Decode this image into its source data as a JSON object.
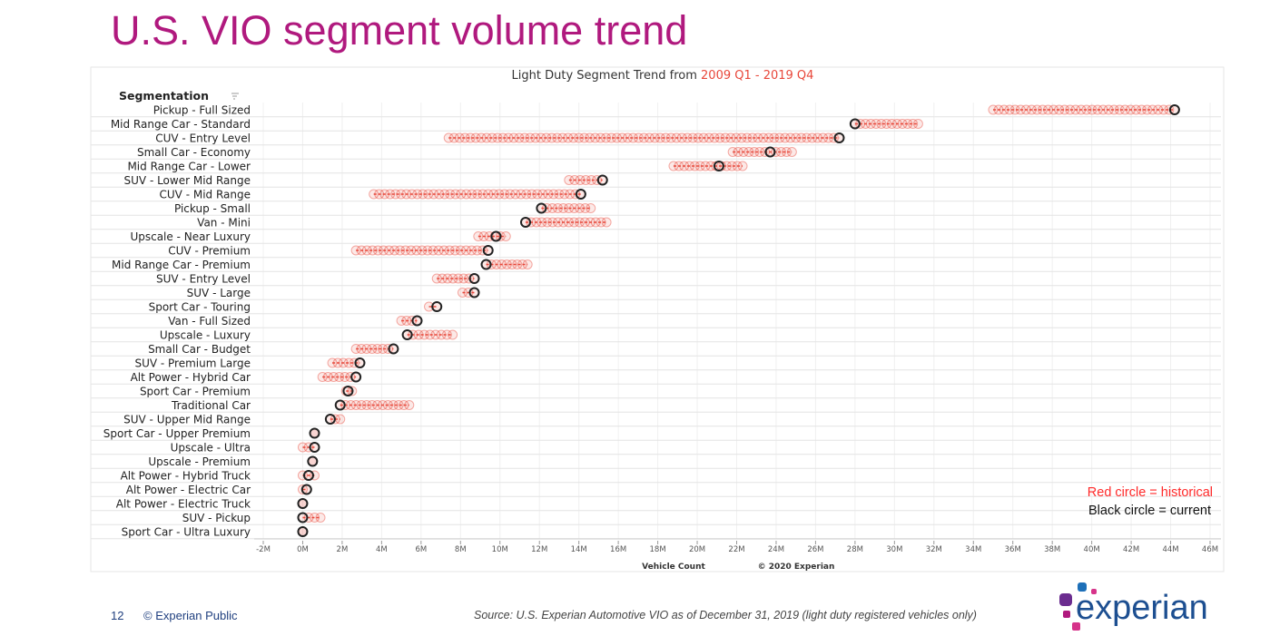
{
  "slide": {
    "title": "U.S. VIO segment volume trend",
    "page_number": "12",
    "classification": "© Experian Public",
    "source": "Source: U.S. Experian Automotive VIO as of December 31, 2019  (light duty registered vehicles only)",
    "logo_text": "experian"
  },
  "chart_data": {
    "type": "dot-range",
    "title_prefix": "Light Duty Segment Trend from ",
    "title_highlight": "2009 Q1 - 2019 Q4",
    "row_header": "Segmentation",
    "xlabel": "Vehicle Count",
    "credit": "© 2020 Experian",
    "xlim": [
      -2,
      46
    ],
    "x_unit": "M",
    "x_ticks": [
      "-2M",
      "0M",
      "2M",
      "4M",
      "6M",
      "8M",
      "10M",
      "12M",
      "14M",
      "16M",
      "18M",
      "20M",
      "22M",
      "24M",
      "26M",
      "28M",
      "30M",
      "32M",
      "34M",
      "36M",
      "38M",
      "40M",
      "42M",
      "44M",
      "46M"
    ],
    "grid": true,
    "legend": {
      "placement": "bottom-right",
      "historical": "Red circle = historical",
      "current": "Black circle = current"
    },
    "colors": {
      "historical": "#e8473a",
      "current": "#222222",
      "title_highlight": "#e8473a",
      "legend_historical": "#ff2a2a"
    },
    "series_fields": [
      "historical_min",
      "historical_max",
      "current"
    ],
    "segments": [
      {
        "name": "Pickup - Full Sized",
        "historical_min": 35.0,
        "historical_max": 44.2,
        "current": 44.2
      },
      {
        "name": "Mid Range Car - Standard",
        "historical_min": 28.0,
        "historical_max": 31.2,
        "current": 28.0
      },
      {
        "name": "CUV - Entry Level",
        "historical_min": 7.4,
        "historical_max": 27.2,
        "current": 27.2
      },
      {
        "name": "Small Car - Economy",
        "historical_min": 21.8,
        "historical_max": 24.8,
        "current": 23.7
      },
      {
        "name": "Mid Range Car - Lower",
        "historical_min": 18.8,
        "historical_max": 22.3,
        "current": 21.1
      },
      {
        "name": "SUV - Lower Mid Range",
        "historical_min": 13.5,
        "historical_max": 15.2,
        "current": 15.2
      },
      {
        "name": "CUV - Mid Range",
        "historical_min": 3.6,
        "historical_max": 14.1,
        "current": 14.1
      },
      {
        "name": "Pickup - Small",
        "historical_min": 12.1,
        "historical_max": 14.6,
        "current": 12.1
      },
      {
        "name": "Van - Mini",
        "historical_min": 11.3,
        "historical_max": 15.4,
        "current": 11.3
      },
      {
        "name": "Upscale - Near Luxury",
        "historical_min": 8.9,
        "historical_max": 10.3,
        "current": 9.8
      },
      {
        "name": "CUV - Premium",
        "historical_min": 2.7,
        "historical_max": 9.4,
        "current": 9.4
      },
      {
        "name": "Mid Range Car - Premium",
        "historical_min": 9.3,
        "historical_max": 11.4,
        "current": 9.3
      },
      {
        "name": "SUV - Entry Level",
        "historical_min": 6.8,
        "historical_max": 8.7,
        "current": 8.7
      },
      {
        "name": "SUV - Large",
        "historical_min": 8.1,
        "historical_max": 8.7,
        "current": 8.7
      },
      {
        "name": "Sport Car - Touring",
        "historical_min": 6.4,
        "historical_max": 6.8,
        "current": 6.8
      },
      {
        "name": "Van - Full Sized",
        "historical_min": 5.0,
        "historical_max": 5.8,
        "current": 5.8
      },
      {
        "name": "Upscale - Luxury",
        "historical_min": 5.3,
        "historical_max": 7.6,
        "current": 5.3
      },
      {
        "name": "Small Car - Budget",
        "historical_min": 2.7,
        "historical_max": 4.6,
        "current": 4.6
      },
      {
        "name": "SUV - Premium Large",
        "historical_min": 1.5,
        "historical_max": 2.9,
        "current": 2.9
      },
      {
        "name": "Alt Power - Hybrid Car",
        "historical_min": 1.0,
        "historical_max": 2.7,
        "current": 2.7
      },
      {
        "name": "Sport Car - Premium",
        "historical_min": 2.2,
        "historical_max": 2.5,
        "current": 2.3
      },
      {
        "name": "Traditional Car",
        "historical_min": 1.9,
        "historical_max": 5.4,
        "current": 1.9
      },
      {
        "name": "SUV - Upper Mid Range",
        "historical_min": 1.4,
        "historical_max": 1.9,
        "current": 1.4
      },
      {
        "name": "Sport Car - Upper Premium",
        "historical_min": 0.6,
        "historical_max": 0.6,
        "current": 0.6
      },
      {
        "name": "Upscale - Ultra",
        "historical_min": 0.0,
        "historical_max": 0.6,
        "current": 0.6
      },
      {
        "name": "Upscale - Premium",
        "historical_min": 0.5,
        "historical_max": 0.5,
        "current": 0.5
      },
      {
        "name": "Alt Power - Hybrid Truck",
        "historical_min": 0.0,
        "historical_max": 0.6,
        "current": 0.3
      },
      {
        "name": "Alt Power - Electric Car",
        "historical_min": 0.0,
        "historical_max": 0.2,
        "current": 0.2
      },
      {
        "name": "Alt Power - Electric Truck",
        "historical_min": 0.0,
        "historical_max": 0.0,
        "current": 0.0
      },
      {
        "name": "SUV - Pickup",
        "historical_min": 0.0,
        "historical_max": 0.9,
        "current": 0.0
      },
      {
        "name": "Sport Car - Ultra Luxury",
        "historical_min": 0.0,
        "historical_max": 0.0,
        "current": 0.0
      }
    ]
  }
}
